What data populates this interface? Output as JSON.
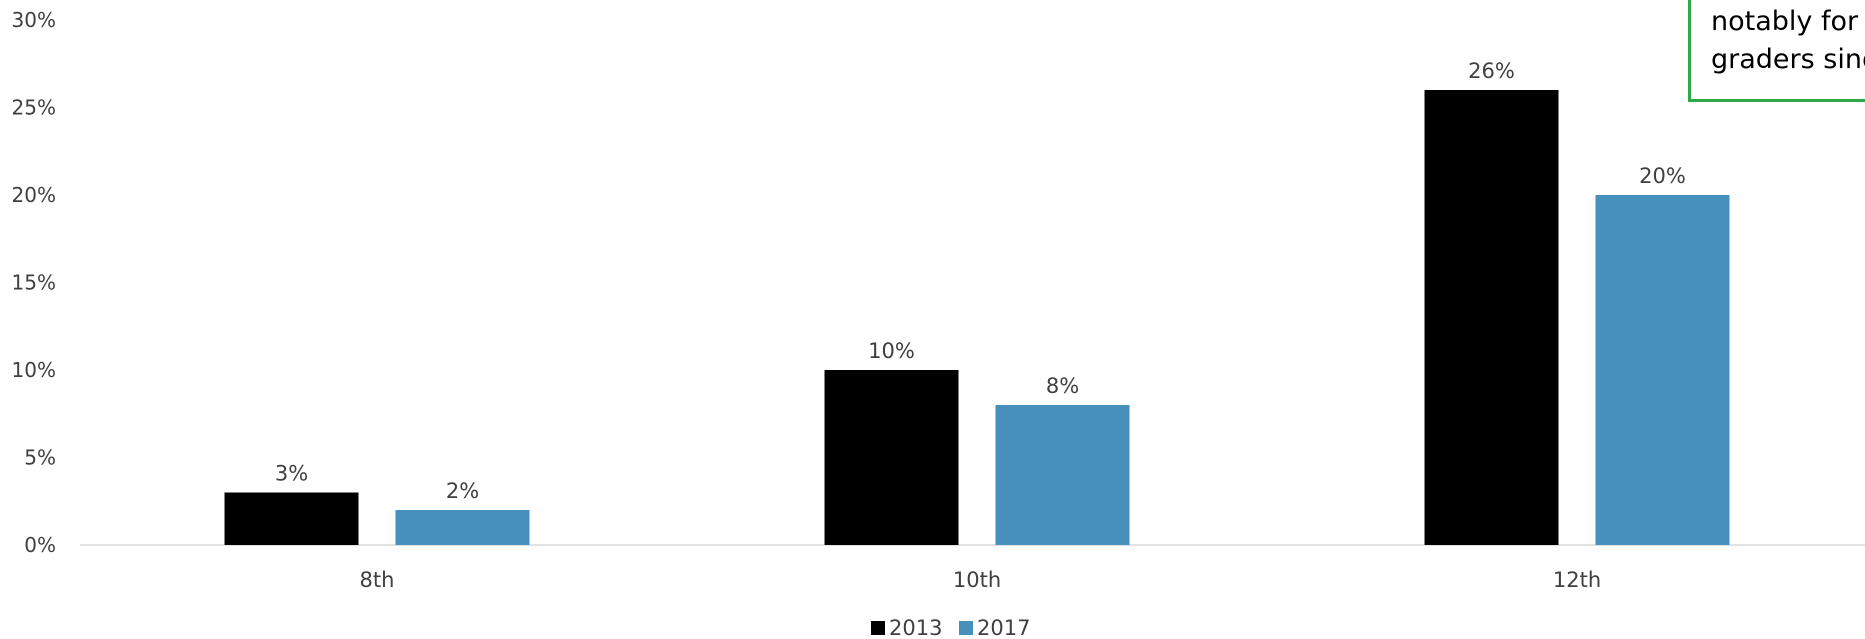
{
  "chart_data": {
    "type": "bar",
    "categories": [
      "8th",
      "10th",
      "12th"
    ],
    "series": [
      {
        "name": "2013",
        "color": "#000000",
        "values": [
          3,
          10,
          26
        ],
        "labels": [
          "3%",
          "10%",
          "26%"
        ]
      },
      {
        "name": "2017",
        "color": "#4690bb",
        "values": [
          2,
          8,
          20
        ],
        "labels": [
          "2%",
          "8%",
          "20%"
        ]
      }
    ],
    "ylim": [
      0,
      30
    ],
    "yticks": [
      0,
      5,
      10,
      15,
      20,
      25,
      30
    ],
    "ytick_labels": [
      "0%",
      "5%",
      "10%",
      "15%",
      "20%",
      "25%",
      "30%"
    ],
    "grid": false,
    "legend_position": "bottom-center",
    "annotation": {
      "lines": [
        "notably for",
        "graders sinc"
      ],
      "border_color": "#2ea84a"
    }
  }
}
